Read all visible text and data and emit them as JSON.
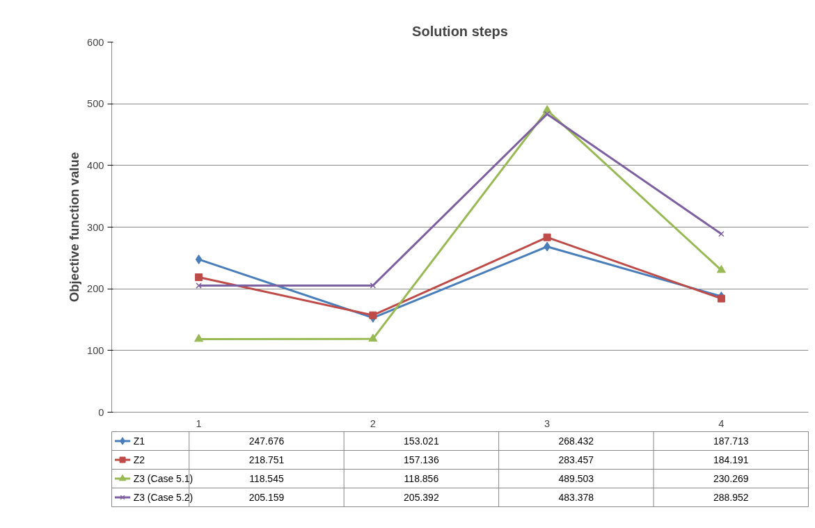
{
  "chart_data": {
    "type": "line",
    "title": "Solution steps",
    "ylabel": "Objective function value",
    "categories": [
      "1",
      "2",
      "3",
      "4"
    ],
    "series": [
      {
        "name": "Z1",
        "color": "#4a7ebb",
        "marker": "diamond",
        "values": [
          247.676,
          153.021,
          268.432,
          187.713
        ]
      },
      {
        "name": "Z2",
        "color": "#be4b48",
        "marker": "square",
        "values": [
          218.751,
          157.136,
          283.457,
          184.191
        ]
      },
      {
        "name": "Z3 (Case 5.1)",
        "color": "#98b954",
        "marker": "triangle",
        "values": [
          118.545,
          118.856,
          489.503,
          230.269
        ]
      },
      {
        "name": "Z3 (Case 5.2)",
        "color": "#7d60a0",
        "marker": "cross",
        "values": [
          205.159,
          205.392,
          483.378,
          288.952
        ]
      }
    ],
    "ylim": [
      0,
      600
    ],
    "yticks": [
      0,
      100,
      200,
      300,
      400,
      500,
      600
    ],
    "grid": "y",
    "legend": "bottom",
    "data_labels": true,
    "line_style": "solid"
  }
}
